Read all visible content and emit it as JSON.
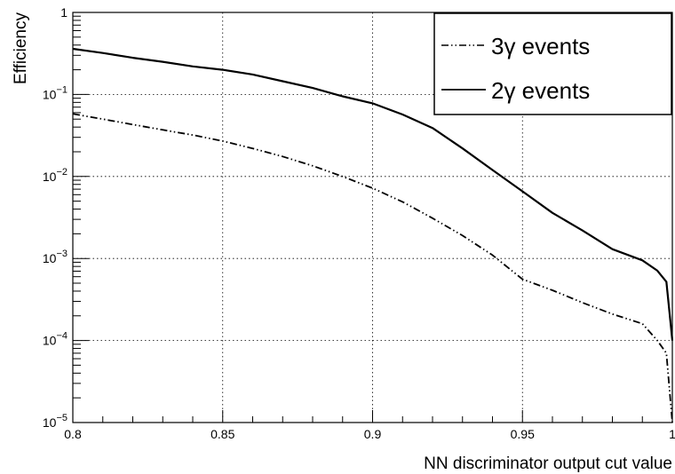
{
  "chart_data": {
    "type": "line",
    "title": "",
    "xlabel": "NN discriminator output cut value",
    "ylabel": "Efficiency",
    "xlim": [
      0.8,
      1.0
    ],
    "ylim": [
      1e-05,
      1
    ],
    "yscale": "log",
    "grid": true,
    "legend_position": "top-right",
    "x_ticks": [
      {
        "value": 0.8,
        "label": "0.8"
      },
      {
        "value": 0.85,
        "label": "0.85"
      },
      {
        "value": 0.9,
        "label": "0.9"
      },
      {
        "value": 0.95,
        "label": "0.95"
      },
      {
        "value": 1.0,
        "label": "1"
      }
    ],
    "y_ticks": [
      {
        "value": 1e-05,
        "base": "10",
        "exp": "−5"
      },
      {
        "value": 0.0001,
        "base": "10",
        "exp": "−4"
      },
      {
        "value": 0.001,
        "base": "10",
        "exp": "−3"
      },
      {
        "value": 0.01,
        "base": "10",
        "exp": "−2"
      },
      {
        "value": 0.1,
        "base": "10",
        "exp": "−1"
      },
      {
        "value": 1,
        "base": "1",
        "exp": ""
      }
    ],
    "series": [
      {
        "name": "3γ events",
        "style": "dash-dot",
        "color": "#000000",
        "x": [
          0.8,
          0.81,
          0.82,
          0.83,
          0.84,
          0.85,
          0.86,
          0.87,
          0.88,
          0.89,
          0.9,
          0.91,
          0.92,
          0.93,
          0.94,
          0.95,
          0.96,
          0.97,
          0.98,
          0.99,
          0.995,
          0.998,
          1.0
        ],
        "y": [
          0.058,
          0.05,
          0.043,
          0.037,
          0.032,
          0.027,
          0.022,
          0.0175,
          0.0135,
          0.01,
          0.0072,
          0.0049,
          0.0031,
          0.0019,
          0.0011,
          0.00056,
          0.00041,
          0.00029,
          0.00021,
          0.00016,
          0.0001,
          7e-05,
          1e-05
        ]
      },
      {
        "name": "2γ events",
        "style": "solid",
        "color": "#000000",
        "x": [
          0.8,
          0.81,
          0.82,
          0.83,
          0.84,
          0.85,
          0.86,
          0.87,
          0.88,
          0.89,
          0.9,
          0.91,
          0.92,
          0.93,
          0.94,
          0.95,
          0.96,
          0.97,
          0.98,
          0.99,
          0.995,
          0.998,
          1.0
        ],
        "y": [
          0.36,
          0.32,
          0.28,
          0.25,
          0.22,
          0.2,
          0.175,
          0.145,
          0.12,
          0.095,
          0.078,
          0.057,
          0.039,
          0.022,
          0.012,
          0.0066,
          0.0036,
          0.0022,
          0.0013,
          0.00095,
          0.00071,
          0.00052,
          0.0001
        ]
      }
    ]
  }
}
